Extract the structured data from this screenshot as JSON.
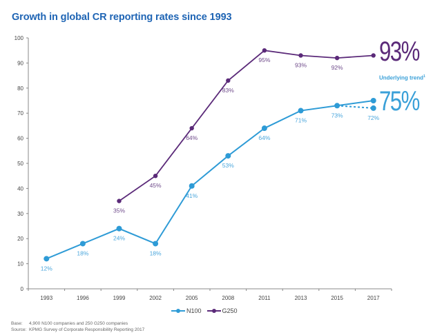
{
  "chart_data": {
    "type": "line",
    "title": "Growth in global CR reporting rates since 1993",
    "xlabel": "",
    "ylabel": "",
    "categories": [
      "1993",
      "1996",
      "1999",
      "2002",
      "2005",
      "2008",
      "2011",
      "2013",
      "2015",
      "2017"
    ],
    "ylim": [
      0,
      100
    ],
    "yticks": [
      0,
      10,
      20,
      30,
      40,
      50,
      60,
      70,
      80,
      90,
      100
    ],
    "grid": false,
    "legend_position": "bottom-center",
    "series": [
      {
        "name": "N100",
        "color": "#2e9bd6",
        "label_color": "#4aa6dc",
        "values": [
          12,
          18,
          24,
          18,
          41,
          53,
          64,
          71,
          73,
          72
        ],
        "labels": [
          "12%",
          "18%",
          "24%",
          "18%",
          "41%",
          "53%",
          "64%",
          "71%",
          "73%",
          "72%"
        ],
        "dashed_last_segment": true,
        "underlying_trend": {
          "category": "2017",
          "value": 75
        }
      },
      {
        "name": "G250",
        "color": "#5b2a79",
        "label_color": "#6e4a8a",
        "values": [
          null,
          null,
          35,
          45,
          64,
          83,
          95,
          93,
          92,
          93
        ],
        "labels": [
          null,
          null,
          "35%",
          "45%",
          "64%",
          "83%",
          "95%",
          "93%",
          "92%",
          null
        ]
      }
    ],
    "annotations": {
      "g250_final": "93%",
      "trend_label": "Underlying trend",
      "trend_superscript": "1",
      "n100_trend_final": "75%"
    }
  },
  "footnotes": {
    "base_label": "Base:",
    "base_text": "4,900 N100 companies and 250 G250 companies",
    "source_label": "Source:",
    "source_text": "KPMG Survey of Corporate Responsibility Reporting 2017"
  }
}
